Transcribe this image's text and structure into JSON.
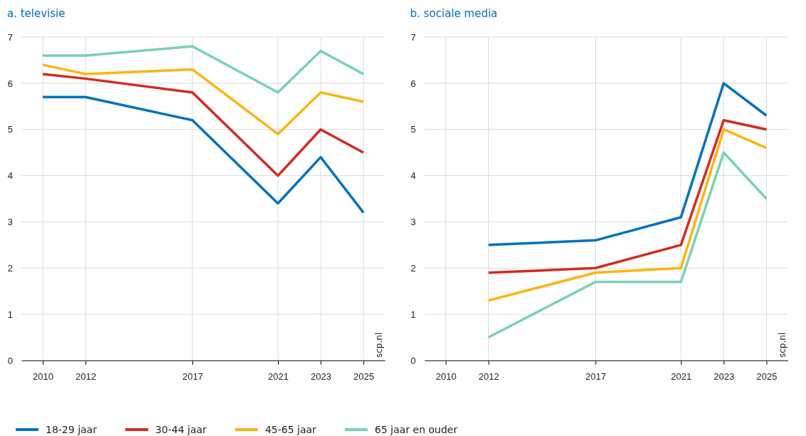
{
  "chart_data": [
    {
      "type": "line",
      "title": "a.  televisie",
      "x": [
        2010,
        2012,
        2017,
        2021,
        2023,
        2025
      ],
      "xlim": [
        2009,
        2026
      ],
      "xticks": [
        2010,
        2012,
        2017,
        2021,
        2023,
        2025
      ],
      "ylim": [
        0,
        7
      ],
      "yticks": [
        0,
        1,
        2,
        3,
        4,
        5,
        6,
        7
      ],
      "grid": true,
      "legend": "bottom",
      "annotations": [
        "scp.nl"
      ],
      "series": [
        {
          "name": "18-29 jaar",
          "color": "#0072bc",
          "values": [
            5.7,
            5.7,
            5.2,
            3.4,
            4.4,
            3.2
          ]
        },
        {
          "name": "30-44 jaar",
          "color": "#d42a20",
          "values": [
            6.2,
            6.1,
            5.8,
            4.0,
            5.0,
            4.5
          ]
        },
        {
          "name": "45-65 jaar",
          "color": "#fbb511",
          "values": [
            6.4,
            6.2,
            6.3,
            4.9,
            5.8,
            5.6
          ]
        },
        {
          "name": "65 jaar en ouder",
          "color": "#76d2b6",
          "values": [
            6.6,
            6.6,
            6.8,
            5.8,
            6.7,
            6.2
          ]
        }
      ]
    },
    {
      "type": "line",
      "title": "b.  sociale media",
      "x": [
        2012,
        2017,
        2021,
        2023,
        2025
      ],
      "xlim": [
        2009,
        2026
      ],
      "xticks": [
        2010,
        2012,
        2017,
        2021,
        2023,
        2025
      ],
      "ylim": [
        0,
        7
      ],
      "yticks": [
        0,
        1,
        2,
        3,
        4,
        5,
        6,
        7
      ],
      "grid": true,
      "annotations": [
        "scp.nl"
      ],
      "series": [
        {
          "color": "#0072bc",
          "values": [
            2.5,
            2.6,
            3.1,
            6.0,
            5.3
          ]
        },
        {
          "color": "#d42a20",
          "values": [
            1.9,
            2.0,
            2.5,
            5.2,
            5.0
          ]
        },
        {
          "color": "#fbb511",
          "values": [
            1.3,
            1.9,
            2.0,
            5.0,
            4.6
          ]
        },
        {
          "color": "#76d2b6",
          "values": [
            0.5,
            1.7,
            1.7,
            4.5,
            3.5
          ]
        }
      ]
    }
  ]
}
